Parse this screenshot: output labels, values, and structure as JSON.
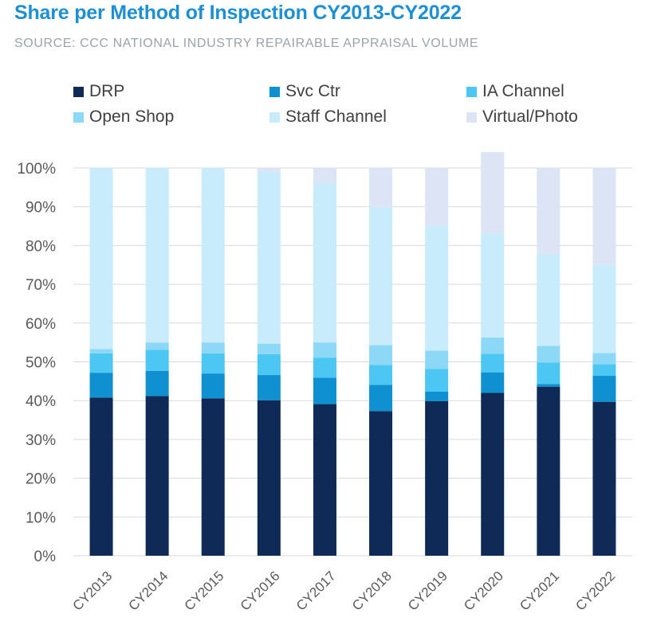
{
  "chart_data": {
    "type": "bar",
    "stacked": true,
    "title": "Share per Method of Inspection CY2013-CY2022",
    "subtitle": "SOURCE: CCC NATIONAL INDUSTRY REPAIRABLE APPRAISAL VOLUME",
    "categories": [
      "CY2013",
      "CY2014",
      "CY2015",
      "CY2016",
      "CY2017",
      "CY2018",
      "CY2019",
      "CY2020",
      "CY2021",
      "CY2022"
    ],
    "ylim": [
      0,
      100
    ],
    "yticks": [
      "0%",
      "10%",
      "20%",
      "30%",
      "40%",
      "50%",
      "60%",
      "70%",
      "80%",
      "90%",
      "100%"
    ],
    "grid": true,
    "legend_position": "top",
    "series": [
      {
        "name": "DRP",
        "color": "#0f2a56",
        "values": [
          40.8,
          41.2,
          40.6,
          40.1,
          39.1,
          37.3,
          39.9,
          42.0,
          43.6,
          39.7
        ]
      },
      {
        "name": "Svc Ctr",
        "color": "#0f90d0",
        "values": [
          6.4,
          6.5,
          6.4,
          6.5,
          6.8,
          6.8,
          2.4,
          5.3,
          0.7,
          6.7
        ]
      },
      {
        "name": "IA Channel",
        "color": "#4cc6f3",
        "values": [
          5.0,
          5.4,
          5.2,
          5.4,
          5.2,
          5.1,
          5.9,
          4.8,
          5.5,
          3.0
        ]
      },
      {
        "name": "Open Shop",
        "color": "#8dd8f7",
        "values": [
          1.1,
          1.9,
          2.8,
          2.7,
          3.9,
          5.1,
          4.7,
          4.2,
          4.3,
          2.9
        ]
      },
      {
        "name": "Staff Channel",
        "color": "#c8ecfb",
        "values": [
          46.7,
          45.0,
          45.0,
          44.4,
          41.1,
          35.6,
          32.2,
          26.8,
          23.6,
          22.8
        ]
      },
      {
        "name": "Virtual/Photo",
        "color": "#dce4f5",
        "values": [
          0.0,
          0.0,
          0.0,
          0.9,
          3.9,
          10.1,
          14.9,
          21.0,
          22.3,
          24.9
        ]
      }
    ]
  }
}
